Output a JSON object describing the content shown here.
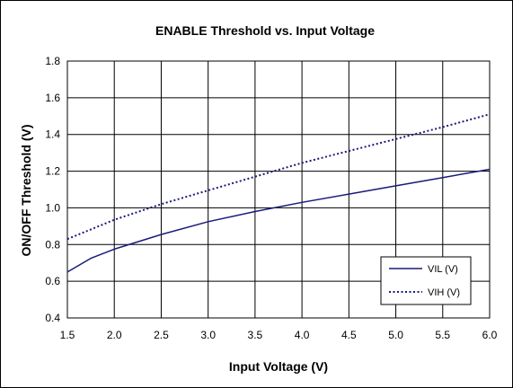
{
  "chart_data": {
    "type": "line",
    "title": "ENABLE Threshold vs. Input Voltage",
    "xlabel": "Input Voltage (V)",
    "ylabel": "ON/OFF Threshold (V)",
    "xlim": [
      1.5,
      6.0
    ],
    "ylim": [
      0.4,
      1.8
    ],
    "xticks": [
      1.5,
      2.0,
      2.5,
      3.0,
      3.5,
      4.0,
      4.5,
      5.0,
      5.5,
      6.0
    ],
    "xtick_labels": [
      "1.5",
      "2.0",
      "2.5",
      "3.0",
      "3.5",
      "4.0",
      "4.5",
      "5.0",
      "5.5",
      "6.0"
    ],
    "yticks": [
      0.4,
      0.6,
      0.8,
      1.0,
      1.2,
      1.4,
      1.6,
      1.8
    ],
    "ytick_labels": [
      "0.4",
      "0.6",
      "0.8",
      "1.0",
      "1.2",
      "1.4",
      "1.6",
      "1.8"
    ],
    "grid": true,
    "legend_position": "bottom-right",
    "series": [
      {
        "name": "VIL (V)",
        "color": "#1a1a7a",
        "style": "solid",
        "x": [
          1.5,
          1.75,
          2.0,
          2.5,
          3.0,
          3.5,
          4.0,
          4.5,
          5.0,
          5.5,
          6.0
        ],
        "y": [
          0.65,
          0.725,
          0.775,
          0.855,
          0.925,
          0.98,
          1.03,
          1.075,
          1.12,
          1.165,
          1.21
        ]
      },
      {
        "name": "VIH (V)",
        "color": "#1a1a7a",
        "style": "dotted",
        "x": [
          1.5,
          2.0,
          2.5,
          3.0,
          3.5,
          4.0,
          4.5,
          5.0,
          5.5,
          6.0
        ],
        "y": [
          0.83,
          0.935,
          1.02,
          1.095,
          1.17,
          1.245,
          1.31,
          1.375,
          1.44,
          1.51
        ]
      }
    ]
  }
}
